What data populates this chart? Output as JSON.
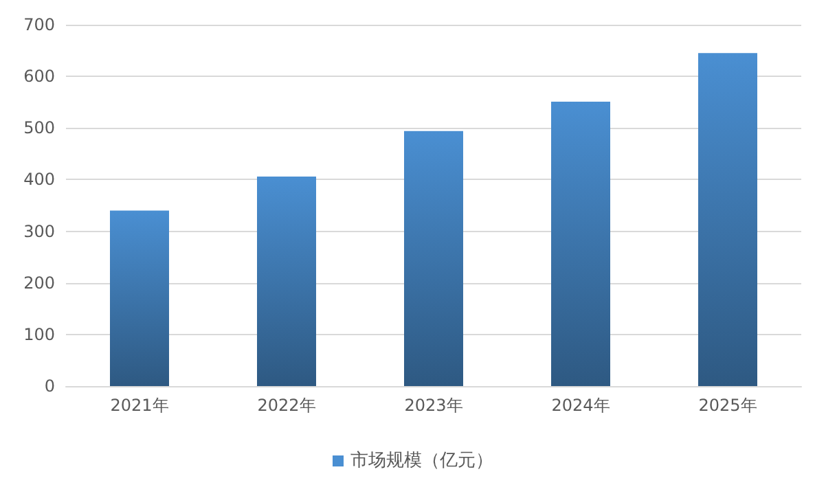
{
  "chart_data": {
    "type": "bar",
    "categories": [
      "2021年",
      "2022年",
      "2023年",
      "2024年",
      "2025年"
    ],
    "series": [
      {
        "name": "市场规模（亿元）",
        "color": "#4a8fd2",
        "values": [
          340,
          406,
          494,
          551,
          645
        ]
      }
    ],
    "ylim": [
      0,
      700
    ],
    "yticks": [
      0,
      100,
      200,
      300,
      400,
      500,
      600,
      700
    ],
    "grid": "y",
    "legend": "bottom"
  }
}
